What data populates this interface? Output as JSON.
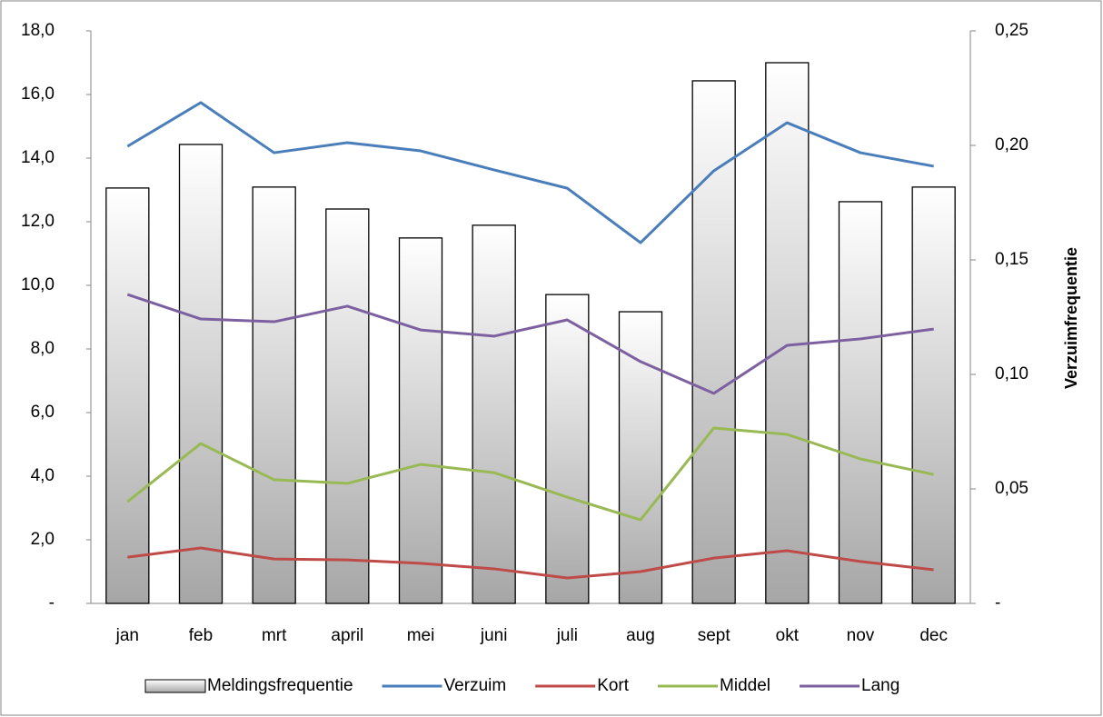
{
  "chart_data": {
    "type": "bar-line",
    "y_label": "Verzuimfrequentie",
    "categories": [
      "jan",
      "feb",
      "mrt",
      "april",
      "mei",
      "juni",
      "juli",
      "aug",
      "sept",
      "okt",
      "nov",
      "dec"
    ],
    "series": [
      {
        "name": "Meldingsfrequentie",
        "type": "bar",
        "color": "#a6a6a6",
        "values": [
          13.06,
          14.43,
          13.09,
          12.4,
          11.49,
          11.89,
          9.71,
          9.17,
          16.43,
          17.0,
          12.63,
          13.09
        ]
      },
      {
        "name": "Verzuim",
        "type": "line",
        "axis": "y2",
        "color": "#4a7ebb",
        "values": [
          0.1996,
          0.2187,
          0.1968,
          0.2012,
          0.1976,
          0.1893,
          0.1813,
          0.1575,
          0.1889,
          0.2099,
          0.1968,
          0.1909
        ]
      },
      {
        "name": "Kort",
        "type": "line",
        "axis": "y2",
        "color": "#be4b48",
        "values": [
          0.0202,
          0.0242,
          0.0194,
          0.019,
          0.0175,
          0.0151,
          0.0111,
          0.0139,
          0.0198,
          0.023,
          0.0183,
          0.0147
        ]
      },
      {
        "name": "Middel",
        "type": "line",
        "axis": "y2",
        "color": "#98b954",
        "values": [
          0.0444,
          0.0698,
          0.054,
          0.0524,
          0.0607,
          0.0571,
          0.0464,
          0.0365,
          0.0766,
          0.0738,
          0.0631,
          0.0563
        ]
      },
      {
        "name": "Lang",
        "type": "line",
        "axis": "y2",
        "color": "#7d60a0",
        "values": [
          0.1349,
          0.1242,
          0.123,
          0.1298,
          0.1194,
          0.1167,
          0.1238,
          0.1056,
          0.0917,
          0.1127,
          0.1155,
          0.1198
        ]
      }
    ],
    "ylim": [
      0,
      18
    ],
    "yticks": [
      {
        "value": 0,
        "label": "-"
      },
      {
        "value": 2,
        "label": "2,0"
      },
      {
        "value": 4,
        "label": "4,0"
      },
      {
        "value": 6,
        "label": "6,0"
      },
      {
        "value": 8,
        "label": "8,0"
      },
      {
        "value": 10,
        "label": "10,0"
      },
      {
        "value": 12,
        "label": "12,0"
      },
      {
        "value": 14,
        "label": "14,0"
      },
      {
        "value": 16,
        "label": "16,0"
      },
      {
        "value": 18,
        "label": "18,0"
      }
    ],
    "y2lim": [
      0,
      0.25
    ],
    "y2ticks": [
      {
        "value": 0,
        "label": "-"
      },
      {
        "value": 0.05,
        "label": "0,05"
      },
      {
        "value": 0.1,
        "label": "0,10"
      },
      {
        "value": 0.15,
        "label": "0,15"
      },
      {
        "value": 0.2,
        "label": "0,20"
      },
      {
        "value": 0.25,
        "label": "0,25"
      }
    ],
    "legend": "bottom"
  }
}
